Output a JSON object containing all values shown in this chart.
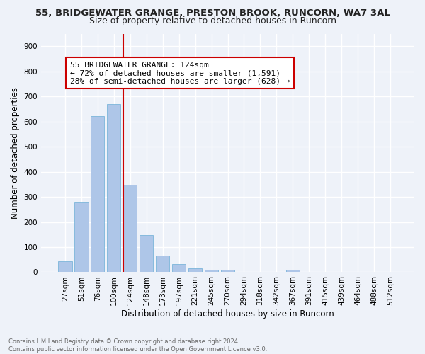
{
  "title": "55, BRIDGEWATER GRANGE, PRESTON BROOK, RUNCORN, WA7 3AL",
  "subtitle": "Size of property relative to detached houses in Runcorn",
  "xlabel": "Distribution of detached houses by size in Runcorn",
  "ylabel": "Number of detached properties",
  "footer_line1": "Contains HM Land Registry data © Crown copyright and database right 2024.",
  "footer_line2": "Contains public sector information licensed under the Open Government Licence v3.0.",
  "bin_labels": [
    "27sqm",
    "51sqm",
    "76sqm",
    "100sqm",
    "124sqm",
    "148sqm",
    "173sqm",
    "197sqm",
    "221sqm",
    "245sqm",
    "270sqm",
    "294sqm",
    "318sqm",
    "342sqm",
    "367sqm",
    "391sqm",
    "415sqm",
    "439sqm",
    "464sqm",
    "488sqm",
    "512sqm"
  ],
  "bar_values": [
    44,
    278,
    621,
    670,
    348,
    147,
    65,
    32,
    15,
    11,
    11,
    0,
    0,
    0,
    10,
    0,
    0,
    0,
    0,
    0,
    0
  ],
  "bar_color": "#aec6e8",
  "bar_edge_color": "#6baed6",
  "vline_index": 4,
  "vline_color": "#cc0000",
  "annotation_text": "55 BRIDGEWATER GRANGE: 124sqm\n← 72% of detached houses are smaller (1,591)\n28% of semi-detached houses are larger (628) →",
  "annotation_box_color": "#ffffff",
  "annotation_box_edge_color": "#cc0000",
  "ylim": [
    0,
    950
  ],
  "yticks": [
    0,
    100,
    200,
    300,
    400,
    500,
    600,
    700,
    800,
    900
  ],
  "bg_color": "#eef2f9",
  "grid_color": "#ffffff",
  "title_fontsize": 9.5,
  "subtitle_fontsize": 9,
  "axis_label_fontsize": 8.5,
  "tick_fontsize": 7.5,
  "annotation_fontsize": 8
}
